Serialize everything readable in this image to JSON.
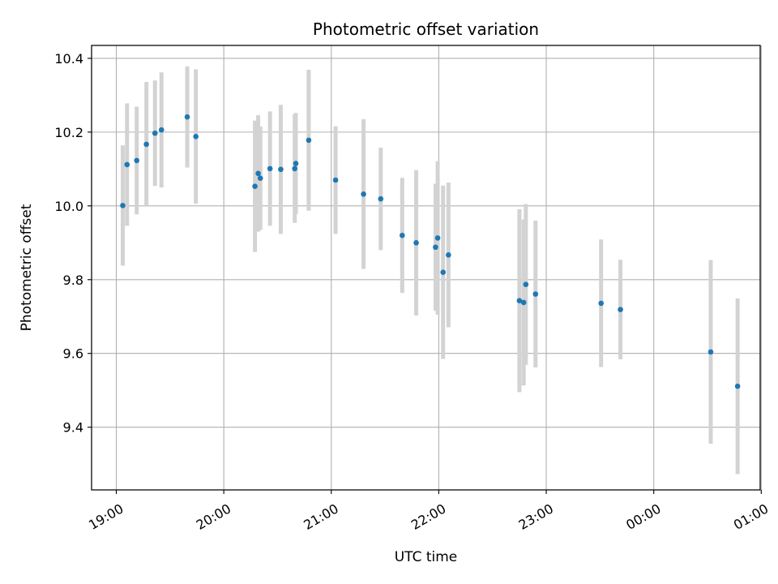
{
  "chart_data": {
    "type": "scatter",
    "title": "Photometric offset variation",
    "xlabel": "UTC time",
    "ylabel": "Photometric offset",
    "grid": true,
    "xlim_hours": [
      18.77,
      24.99
    ],
    "ylim": [
      9.23,
      10.435
    ],
    "x_ticks": [
      {
        "value": 19,
        "label": "19:00"
      },
      {
        "value": 20,
        "label": "20:00"
      },
      {
        "value": 21,
        "label": "21:00"
      },
      {
        "value": 22,
        "label": "22:00"
      },
      {
        "value": 23,
        "label": "23:00"
      },
      {
        "value": 24,
        "label": "00:00"
      },
      {
        "value": 25,
        "label": "01:00"
      }
    ],
    "y_ticks": [
      {
        "value": 9.4,
        "label": "9.4"
      },
      {
        "value": 9.6,
        "label": "9.6"
      },
      {
        "value": 9.8,
        "label": "9.8"
      },
      {
        "value": 10.0,
        "label": "10.0"
      },
      {
        "value": 10.2,
        "label": "10.2"
      },
      {
        "value": 10.4,
        "label": "10.4"
      }
    ],
    "series": [
      {
        "name": "offset",
        "point_color": "#1f77b4",
        "errorbar_color": "#d3d3d3",
        "points": [
          {
            "x": 19.06,
            "y": 10.001,
            "err": 0.163
          },
          {
            "x": 19.1,
            "y": 10.112,
            "err": 0.166
          },
          {
            "x": 19.19,
            "y": 10.123,
            "err": 0.146
          },
          {
            "x": 19.28,
            "y": 10.167,
            "err": 0.169
          },
          {
            "x": 19.36,
            "y": 10.197,
            "err": 0.143
          },
          {
            "x": 19.42,
            "y": 10.206,
            "err": 0.156
          },
          {
            "x": 19.66,
            "y": 10.241,
            "err": 0.137
          },
          {
            "x": 19.74,
            "y": 10.188,
            "err": 0.182
          },
          {
            "x": 20.29,
            "y": 10.053,
            "err": 0.178
          },
          {
            "x": 20.32,
            "y": 10.088,
            "err": 0.158
          },
          {
            "x": 20.34,
            "y": 10.075,
            "err": 0.14
          },
          {
            "x": 20.43,
            "y": 10.101,
            "err": 0.155
          },
          {
            "x": 20.53,
            "y": 10.099,
            "err": 0.175
          },
          {
            "x": 20.66,
            "y": 10.101,
            "err": 0.147
          },
          {
            "x": 20.67,
            "y": 10.115,
            "err": 0.137
          },
          {
            "x": 20.79,
            "y": 10.178,
            "err": 0.191
          },
          {
            "x": 21.04,
            "y": 10.07,
            "err": 0.146
          },
          {
            "x": 21.3,
            "y": 10.032,
            "err": 0.203
          },
          {
            "x": 21.46,
            "y": 10.019,
            "err": 0.139
          },
          {
            "x": 21.66,
            "y": 9.92,
            "err": 0.156
          },
          {
            "x": 21.79,
            "y": 9.9,
            "err": 0.197
          },
          {
            "x": 21.97,
            "y": 9.888,
            "err": 0.172
          },
          {
            "x": 21.99,
            "y": 9.913,
            "err": 0.208
          },
          {
            "x": 22.04,
            "y": 9.82,
            "err": 0.235
          },
          {
            "x": 22.09,
            "y": 9.867,
            "err": 0.196
          },
          {
            "x": 22.75,
            "y": 9.743,
            "err": 0.248
          },
          {
            "x": 22.79,
            "y": 9.738,
            "err": 0.225
          },
          {
            "x": 22.81,
            "y": 9.787,
            "err": 0.218
          },
          {
            "x": 22.9,
            "y": 9.761,
            "err": 0.199
          },
          {
            "x": 23.51,
            "y": 9.736,
            "err": 0.173
          },
          {
            "x": 23.69,
            "y": 9.719,
            "err": 0.135
          },
          {
            "x": 24.53,
            "y": 9.604,
            "err": 0.249
          },
          {
            "x": 24.78,
            "y": 9.511,
            "err": 0.238
          }
        ]
      }
    ]
  }
}
